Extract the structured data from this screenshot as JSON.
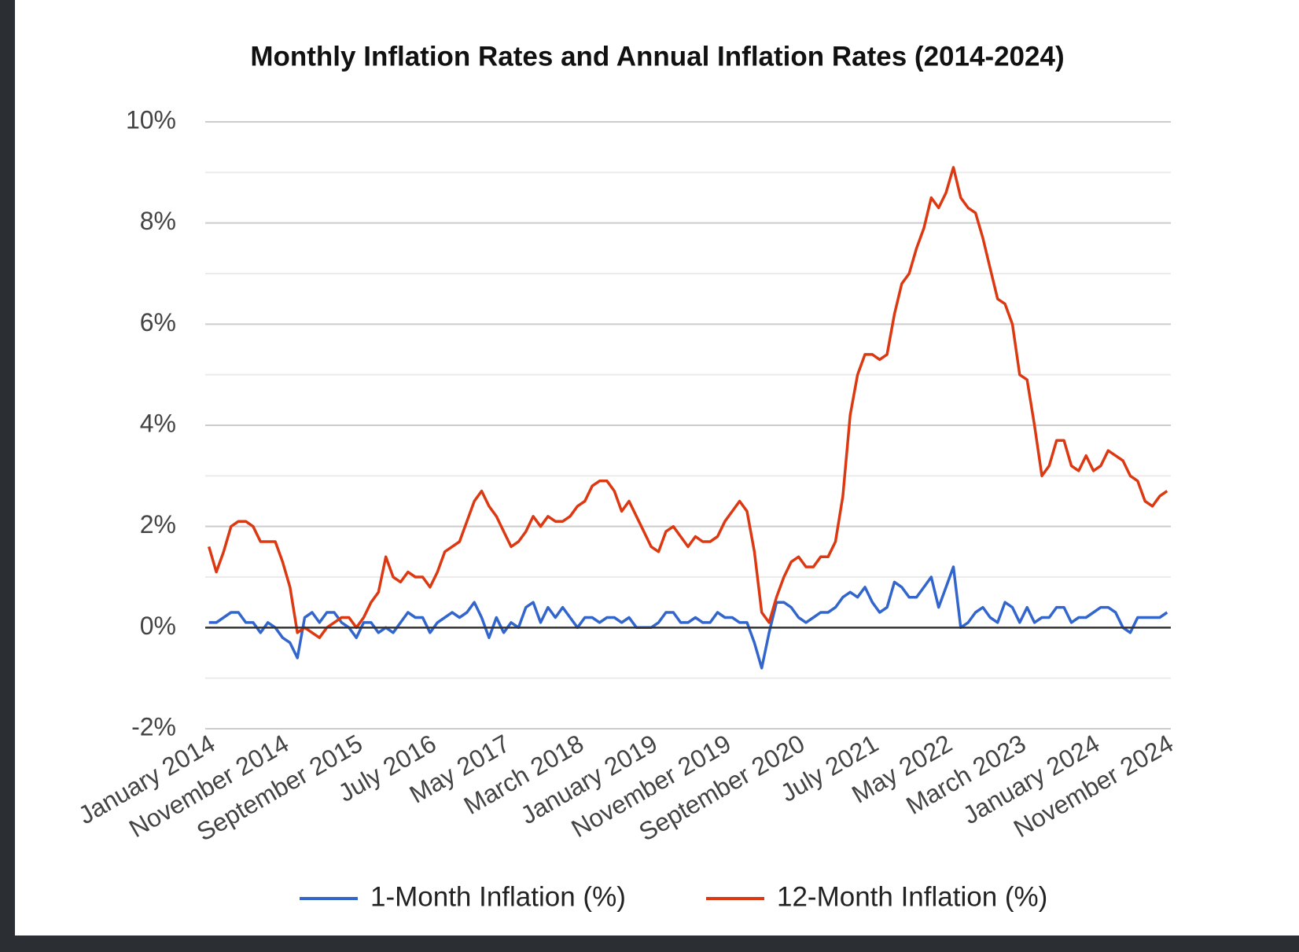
{
  "chart_data": {
    "type": "line",
    "title": "Monthly Inflation Rates and Annual Inflation Rates (2014-2024)",
    "categories": [
      "January 2014",
      null,
      null,
      null,
      null,
      null,
      null,
      null,
      null,
      null,
      "November 2014",
      null,
      null,
      null,
      null,
      null,
      null,
      null,
      null,
      null,
      "September 2015",
      null,
      null,
      null,
      null,
      null,
      null,
      null,
      null,
      null,
      "July 2016",
      null,
      null,
      null,
      null,
      null,
      null,
      null,
      null,
      null,
      "May 2017",
      null,
      null,
      null,
      null,
      null,
      null,
      null,
      null,
      null,
      "March 2018",
      null,
      null,
      null,
      null,
      null,
      null,
      null,
      null,
      null,
      "January 2019",
      null,
      null,
      null,
      null,
      null,
      null,
      null,
      null,
      null,
      "November 2019",
      null,
      null,
      null,
      null,
      null,
      null,
      null,
      null,
      null,
      "September 2020",
      null,
      null,
      null,
      null,
      null,
      null,
      null,
      null,
      null,
      "July 2021",
      null,
      null,
      null,
      null,
      null,
      null,
      null,
      null,
      null,
      "May 2022",
      null,
      null,
      null,
      null,
      null,
      null,
      null,
      null,
      null,
      "March 2023",
      null,
      null,
      null,
      null,
      null,
      null,
      null,
      null,
      null,
      "January 2024",
      null,
      null,
      null,
      null,
      null,
      null,
      null,
      null,
      null,
      "November 2024"
    ],
    "series": [
      {
        "name": "1-Month Inflation (%)",
        "color": "#3366cc",
        "values": [
          0.1,
          0.1,
          0.2,
          0.3,
          0.3,
          0.1,
          0.1,
          -0.1,
          0.1,
          0.0,
          -0.2,
          -0.3,
          -0.6,
          0.2,
          0.3,
          0.1,
          0.3,
          0.3,
          0.1,
          0.0,
          -0.2,
          0.1,
          0.1,
          -0.1,
          0.0,
          -0.1,
          0.1,
          0.3,
          0.2,
          0.2,
          -0.1,
          0.1,
          0.2,
          0.3,
          0.2,
          0.3,
          0.5,
          0.2,
          -0.2,
          0.2,
          -0.1,
          0.1,
          0.0,
          0.4,
          0.5,
          0.1,
          0.4,
          0.2,
          0.4,
          0.2,
          0.0,
          0.2,
          0.2,
          0.1,
          0.2,
          0.2,
          0.1,
          0.2,
          0.0,
          0.0,
          0.0,
          0.1,
          0.3,
          0.3,
          0.1,
          0.1,
          0.2,
          0.1,
          0.1,
          0.3,
          0.2,
          0.2,
          0.1,
          0.1,
          -0.3,
          -0.8,
          -0.1,
          0.5,
          0.5,
          0.4,
          0.2,
          0.1,
          0.2,
          0.3,
          0.3,
          0.4,
          0.6,
          0.7,
          0.6,
          0.8,
          0.5,
          0.3,
          0.4,
          0.9,
          0.8,
          0.6,
          0.6,
          0.8,
          1.0,
          0.4,
          0.8,
          1.2,
          0.0,
          0.1,
          0.3,
          0.4,
          0.2,
          0.1,
          0.5,
          0.4,
          0.1,
          0.4,
          0.1,
          0.2,
          0.2,
          0.4,
          0.4,
          0.1,
          0.2,
          0.2,
          0.3,
          0.4,
          0.4,
          0.3,
          0.0,
          -0.1,
          0.2,
          0.2,
          0.2,
          0.2,
          0.3
        ]
      },
      {
        "name": "12-Month Inflation (%)",
        "color": "#dc3912",
        "values": [
          1.6,
          1.1,
          1.5,
          2.0,
          2.1,
          2.1,
          2.0,
          1.7,
          1.7,
          1.7,
          1.3,
          0.8,
          -0.1,
          0.0,
          -0.1,
          -0.2,
          0.0,
          0.1,
          0.2,
          0.2,
          0.0,
          0.2,
          0.5,
          0.7,
          1.4,
          1.0,
          0.9,
          1.1,
          1.0,
          1.0,
          0.8,
          1.1,
          1.5,
          1.6,
          1.7,
          2.1,
          2.5,
          2.7,
          2.4,
          2.2,
          1.9,
          1.6,
          1.7,
          1.9,
          2.2,
          2.0,
          2.2,
          2.1,
          2.1,
          2.2,
          2.4,
          2.5,
          2.8,
          2.9,
          2.9,
          2.7,
          2.3,
          2.5,
          2.2,
          1.9,
          1.6,
          1.5,
          1.9,
          2.0,
          1.8,
          1.6,
          1.8,
          1.7,
          1.7,
          1.8,
          2.1,
          2.3,
          2.5,
          2.3,
          1.5,
          0.3,
          0.1,
          0.6,
          1.0,
          1.3,
          1.4,
          1.2,
          1.2,
          1.4,
          1.4,
          1.7,
          2.6,
          4.2,
          5.0,
          5.4,
          5.4,
          5.3,
          5.4,
          6.2,
          6.8,
          7.0,
          7.5,
          7.9,
          8.5,
          8.3,
          8.6,
          9.1,
          8.5,
          8.3,
          8.2,
          7.7,
          7.1,
          6.5,
          6.4,
          6.0,
          5.0,
          4.9,
          4.0,
          3.0,
          3.2,
          3.7,
          3.7,
          3.2,
          3.1,
          3.4,
          3.1,
          3.2,
          3.5,
          3.4,
          3.3,
          3.0,
          2.9,
          2.5,
          2.4,
          2.6,
          2.7
        ]
      }
    ],
    "ylim": [
      -2,
      10
    ],
    "yticks": [
      {
        "value": -2,
        "label": "-2%"
      },
      {
        "value": 0,
        "label": "0%"
      },
      {
        "value": 2,
        "label": "2%"
      },
      {
        "value": 4,
        "label": "4%"
      },
      {
        "value": 6,
        "label": "6%"
      },
      {
        "value": 8,
        "label": "8%"
      },
      {
        "value": 10,
        "label": "10%"
      }
    ],
    "minor_yticks": [
      -1,
      1,
      3,
      5,
      7,
      9
    ],
    "grid": true,
    "legend": "bottom"
  }
}
